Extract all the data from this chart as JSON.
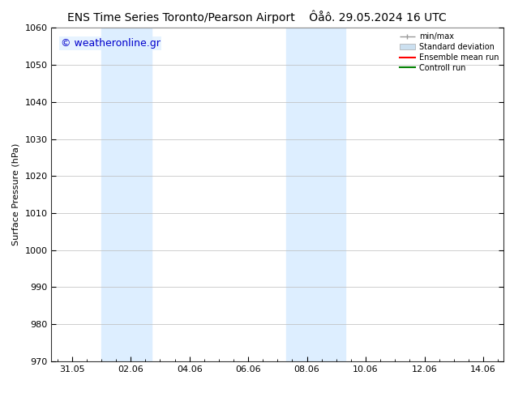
{
  "title_left": "ENS Time Series Toronto/Pearson Airport",
  "title_right": "Ôåô. 29.05.2024 16 UTC",
  "ylabel": "Surface Pressure (hPa)",
  "ylim": [
    970,
    1060
  ],
  "yticks": [
    970,
    980,
    990,
    1000,
    1010,
    1020,
    1030,
    1040,
    1050,
    1060
  ],
  "x_tick_labels": [
    "31.05",
    "02.06",
    "04.06",
    "06.06",
    "08.06",
    "10.06",
    "12.06",
    "14.06"
  ],
  "x_tick_positions": [
    0,
    2,
    4,
    6,
    8,
    10,
    12,
    14
  ],
  "xlim": [
    -0.7,
    14.7
  ],
  "shaded_bands": [
    {
      "x_start": 1.0,
      "x_end": 2.7
    },
    {
      "x_start": 7.3,
      "x_end": 9.3
    }
  ],
  "shaded_color": "#ddeeff",
  "watermark_text": "© weatheronline.gr",
  "watermark_color": "#0000cc",
  "bg_color": "#ffffff",
  "plot_bg_color": "#ffffff",
  "grid_color": "#bbbbbb",
  "legend_labels": [
    "min/max",
    "Standard deviation",
    "Ensemble mean run",
    "Controll run"
  ],
  "legend_colors": [
    "#aaaaaa",
    "#cce0f0",
    "#ff0000",
    "#008000"
  ],
  "title_fontsize": 10,
  "ylabel_fontsize": 8,
  "tick_fontsize": 8,
  "legend_fontsize": 7,
  "watermark_fontsize": 9
}
